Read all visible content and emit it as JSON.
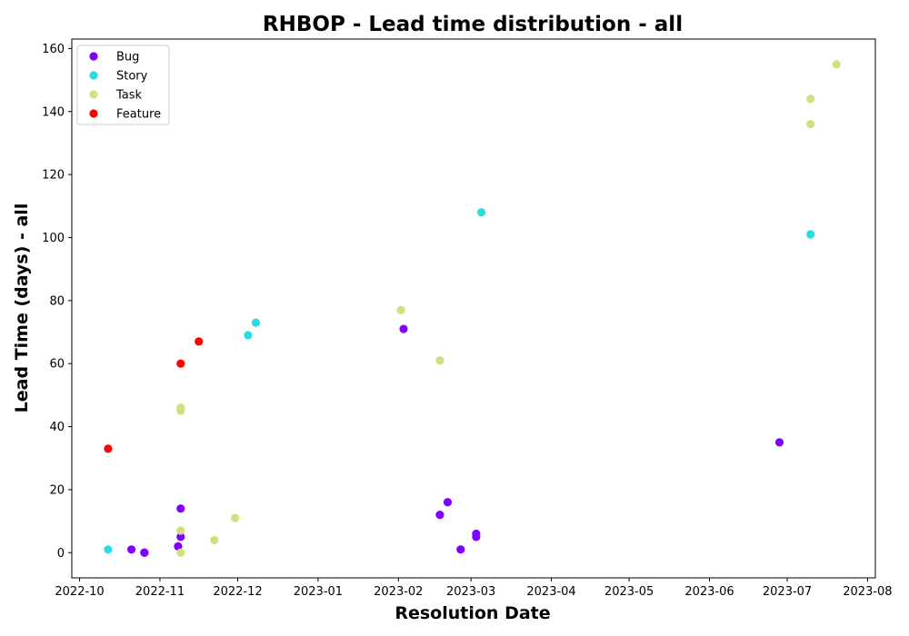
{
  "chart_data": {
    "type": "scatter",
    "title": "RHBOP - Lead time distribution - all",
    "xlabel": "Resolution Date",
    "ylabel": "Lead Time (days) - all",
    "xlim": [
      "2022-09-28",
      "2023-08-04"
    ],
    "ylim": [
      -8,
      163
    ],
    "x_ticks": [
      "2022-10",
      "2022-11",
      "2022-12",
      "2023-01",
      "2023-02",
      "2023-03",
      "2023-04",
      "2023-05",
      "2023-06",
      "2023-07",
      "2023-08"
    ],
    "y_ticks": [
      0,
      20,
      40,
      60,
      80,
      100,
      120,
      140,
      160
    ],
    "grid": false,
    "legend_position": "top-left",
    "series": [
      {
        "name": "Bug",
        "color": "#8000ff",
        "points": [
          {
            "x": "2022-10-21",
            "y": 1
          },
          {
            "x": "2022-10-26",
            "y": 0
          },
          {
            "x": "2022-10-26",
            "y": 0
          },
          {
            "x": "2022-11-08",
            "y": 2
          },
          {
            "x": "2022-11-09",
            "y": 5
          },
          {
            "x": "2022-11-09",
            "y": 14
          },
          {
            "x": "2023-02-03",
            "y": 71
          },
          {
            "x": "2023-02-17",
            "y": 12
          },
          {
            "x": "2023-02-20",
            "y": 16
          },
          {
            "x": "2023-02-25",
            "y": 1
          },
          {
            "x": "2023-03-03",
            "y": 5
          },
          {
            "x": "2023-03-03",
            "y": 6
          },
          {
            "x": "2023-06-28",
            "y": 35
          }
        ]
      },
      {
        "name": "Story",
        "color": "#2adddd",
        "points": [
          {
            "x": "2022-10-12",
            "y": 1
          },
          {
            "x": "2022-12-05",
            "y": 69
          },
          {
            "x": "2022-12-08",
            "y": 73
          },
          {
            "x": "2023-03-05",
            "y": 108
          },
          {
            "x": "2023-07-10",
            "y": 101
          }
        ]
      },
      {
        "name": "Task",
        "color": "#d4dd80",
        "points": [
          {
            "x": "2022-11-09",
            "y": 0
          },
          {
            "x": "2022-11-09",
            "y": 7
          },
          {
            "x": "2022-11-09",
            "y": 45
          },
          {
            "x": "2022-11-09",
            "y": 46
          },
          {
            "x": "2022-11-22",
            "y": 4
          },
          {
            "x": "2022-11-30",
            "y": 11
          },
          {
            "x": "2023-02-02",
            "y": 77
          },
          {
            "x": "2023-02-17",
            "y": 61
          },
          {
            "x": "2023-07-10",
            "y": 136
          },
          {
            "x": "2023-07-10",
            "y": 144
          },
          {
            "x": "2023-07-20",
            "y": 155
          }
        ]
      },
      {
        "name": "Feature",
        "color": "#ff0000",
        "points": [
          {
            "x": "2022-10-12",
            "y": 33
          },
          {
            "x": "2022-11-09",
            "y": 60
          },
          {
            "x": "2022-11-16",
            "y": 67
          }
        ]
      }
    ]
  }
}
